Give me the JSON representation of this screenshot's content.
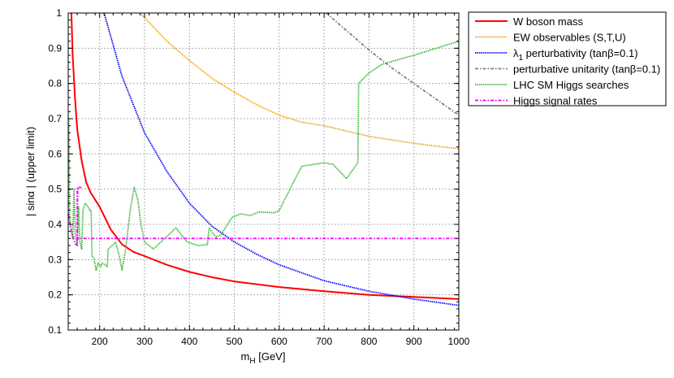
{
  "chart_data": {
    "type": "line",
    "xlabel": "m_H [GeV]",
    "xlabel_main": "m",
    "xlabel_sub": "H",
    "xlabel_rest": " [GeV]",
    "ylabel": "| sinα |  (upper limit)",
    "xlim": [
      130,
      1000
    ],
    "ylim": [
      0.1,
      1.0
    ],
    "xticks": [
      200,
      300,
      400,
      500,
      600,
      700,
      800,
      900,
      1000
    ],
    "yticks": [
      0.1,
      0.2,
      0.3,
      0.4,
      0.5,
      0.6,
      0.7,
      0.8,
      0.9,
      1
    ],
    "grid": true,
    "legend_position": "outside-right",
    "series": [
      {
        "name": "W boson mass",
        "color": "#ff0000",
        "style": "solid",
        "points": [
          [
            137,
            1.0
          ],
          [
            140,
            0.88
          ],
          [
            145,
            0.76
          ],
          [
            150,
            0.67
          ],
          [
            160,
            0.58
          ],
          [
            170,
            0.52
          ],
          [
            180,
            0.49
          ],
          [
            200,
            0.45
          ],
          [
            225,
            0.385
          ],
          [
            250,
            0.343
          ],
          [
            275,
            0.322
          ],
          [
            300,
            0.31
          ],
          [
            350,
            0.285
          ],
          [
            400,
            0.265
          ],
          [
            450,
            0.25
          ],
          [
            500,
            0.238
          ],
          [
            600,
            0.222
          ],
          [
            700,
            0.21
          ],
          [
            800,
            0.2
          ],
          [
            900,
            0.194
          ],
          [
            1000,
            0.188
          ]
        ]
      },
      {
        "name": "EW observables (S,T,U)",
        "color": "#ffa500",
        "style": "dotted",
        "points": [
          [
            290,
            1.0
          ],
          [
            350,
            0.92
          ],
          [
            400,
            0.865
          ],
          [
            450,
            0.815
          ],
          [
            500,
            0.775
          ],
          [
            550,
            0.74
          ],
          [
            600,
            0.71
          ],
          [
            650,
            0.69
          ],
          [
            700,
            0.68
          ],
          [
            750,
            0.665
          ],
          [
            800,
            0.65
          ],
          [
            850,
            0.64
          ],
          [
            900,
            0.63
          ],
          [
            950,
            0.622
          ],
          [
            1000,
            0.615
          ]
        ]
      },
      {
        "name": "λ1 perturbativity (tanβ=0.1)",
        "name_main": "λ",
        "name_sub": "1",
        "name_rest": " perturbativity (tanβ=0.1)",
        "color": "#0000ff",
        "style": "dotted",
        "points": [
          [
            210,
            1.0
          ],
          [
            250,
            0.82
          ],
          [
            300,
            0.66
          ],
          [
            350,
            0.55
          ],
          [
            400,
            0.46
          ],
          [
            450,
            0.395
          ],
          [
            500,
            0.35
          ],
          [
            550,
            0.315
          ],
          [
            600,
            0.285
          ],
          [
            700,
            0.24
          ],
          [
            800,
            0.21
          ],
          [
            900,
            0.188
          ],
          [
            1000,
            0.17
          ]
        ]
      },
      {
        "name": "perturbative unitarity (tanβ=0.1)",
        "color": "#808080",
        "style": "dashdot",
        "points": [
          [
            705,
            1.0
          ],
          [
            750,
            0.95
          ],
          [
            800,
            0.895
          ],
          [
            850,
            0.845
          ],
          [
            900,
            0.8
          ],
          [
            950,
            0.755
          ],
          [
            1000,
            0.71
          ]
        ]
      },
      {
        "name": "LHC SM Higgs searches",
        "color": "#3cb83c",
        "style": "dotted",
        "points": [
          [
            131,
            0.7
          ],
          [
            133,
            0.42
          ],
          [
            136,
            0.39
          ],
          [
            140,
            0.36
          ],
          [
            143,
            0.5
          ],
          [
            146,
            0.37
          ],
          [
            150,
            0.34
          ],
          [
            153,
            0.45
          ],
          [
            156,
            0.35
          ],
          [
            160,
            0.33
          ],
          [
            163,
            0.44
          ],
          [
            168,
            0.46
          ],
          [
            174,
            0.45
          ],
          [
            178,
            0.44
          ],
          [
            181,
            0.44
          ],
          [
            183,
            0.31
          ],
          [
            187,
            0.305
          ],
          [
            192,
            0.27
          ],
          [
            197,
            0.29
          ],
          [
            202,
            0.28
          ],
          [
            206,
            0.29
          ],
          [
            212,
            0.285
          ],
          [
            217,
            0.28
          ],
          [
            219,
            0.33
          ],
          [
            228,
            0.34
          ],
          [
            235,
            0.35
          ],
          [
            242,
            0.32
          ],
          [
            250,
            0.27
          ],
          [
            258,
            0.33
          ],
          [
            268,
            0.44
          ],
          [
            277,
            0.505
          ],
          [
            285,
            0.47
          ],
          [
            292,
            0.4
          ],
          [
            300,
            0.35
          ],
          [
            320,
            0.33
          ],
          [
            345,
            0.36
          ],
          [
            370,
            0.39
          ],
          [
            395,
            0.35
          ],
          [
            420,
            0.34
          ],
          [
            440,
            0.343
          ],
          [
            444,
            0.39
          ],
          [
            455,
            0.37
          ],
          [
            460,
            0.365
          ],
          [
            470,
            0.37
          ],
          [
            495,
            0.42
          ],
          [
            515,
            0.43
          ],
          [
            535,
            0.425
          ],
          [
            555,
            0.435
          ],
          [
            590,
            0.433
          ],
          [
            600,
            0.44
          ],
          [
            650,
            0.565
          ],
          [
            700,
            0.575
          ],
          [
            720,
            0.57
          ],
          [
            750,
            0.53
          ],
          [
            775,
            0.575
          ],
          [
            777,
            0.8
          ],
          [
            800,
            0.83
          ],
          [
            830,
            0.855
          ],
          [
            900,
            0.88
          ],
          [
            1000,
            0.92
          ]
        ]
      },
      {
        "name": "Higgs signal rates",
        "color": "#ff00ff",
        "style": "dashdot",
        "points": [
          [
            130,
            0.43
          ],
          [
            135,
            0.39
          ],
          [
            140,
            0.37
          ],
          [
            145,
            0.345
          ],
          [
            150,
            0.34
          ],
          [
            151,
            0.5
          ],
          [
            158,
            0.505
          ],
          [
            150,
            0.505
          ],
          [
            150,
            0.36
          ],
          [
            1000,
            0.36
          ]
        ]
      }
    ]
  }
}
